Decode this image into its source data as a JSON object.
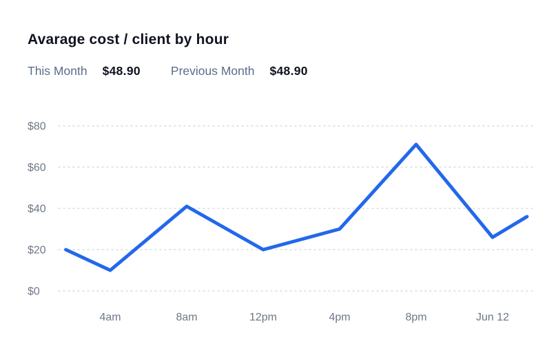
{
  "header": {
    "title": "Avarage cost / client by hour"
  },
  "legend": {
    "this_month_label": "This Month",
    "this_month_value": "$48.90",
    "previous_month_label": "Previous Month",
    "previous_month_value": "$48.90"
  },
  "chart_data": {
    "type": "line",
    "title": "Avarage cost / client by hour",
    "xlabel": "",
    "ylabel": "",
    "ylim": [
      0,
      80
    ],
    "grid": "horizontal-dotted",
    "legend_position": "top-left",
    "y_ticks": [
      {
        "label": "$0",
        "value": 0
      },
      {
        "label": "$20",
        "value": 20
      },
      {
        "label": "$40",
        "value": 40
      },
      {
        "label": "$60",
        "value": 60
      },
      {
        "label": "$80",
        "value": 80
      }
    ],
    "x_ticks": [
      {
        "label": "4am",
        "x": 1
      },
      {
        "label": "8am",
        "x": 2
      },
      {
        "label": "12pm",
        "x": 3
      },
      {
        "label": "4pm",
        "x": 4
      },
      {
        "label": "8pm",
        "x": 5
      },
      {
        "label": "Jun 12",
        "x": 6
      }
    ],
    "series": [
      {
        "name": "This Month",
        "color": "#2368EB",
        "x": [
          0.42,
          1,
          2,
          3,
          4,
          5,
          6,
          6.45
        ],
        "values": [
          20,
          10,
          41,
          20,
          30,
          71,
          26,
          36
        ]
      }
    ]
  },
  "colors": {
    "accent": "#2368EB",
    "title_text": "#10131F",
    "legend_label": "#5B6C8B",
    "axis_label": "#6E7887",
    "gridline": "#D9DCE2",
    "background": "#FFFFFF"
  }
}
